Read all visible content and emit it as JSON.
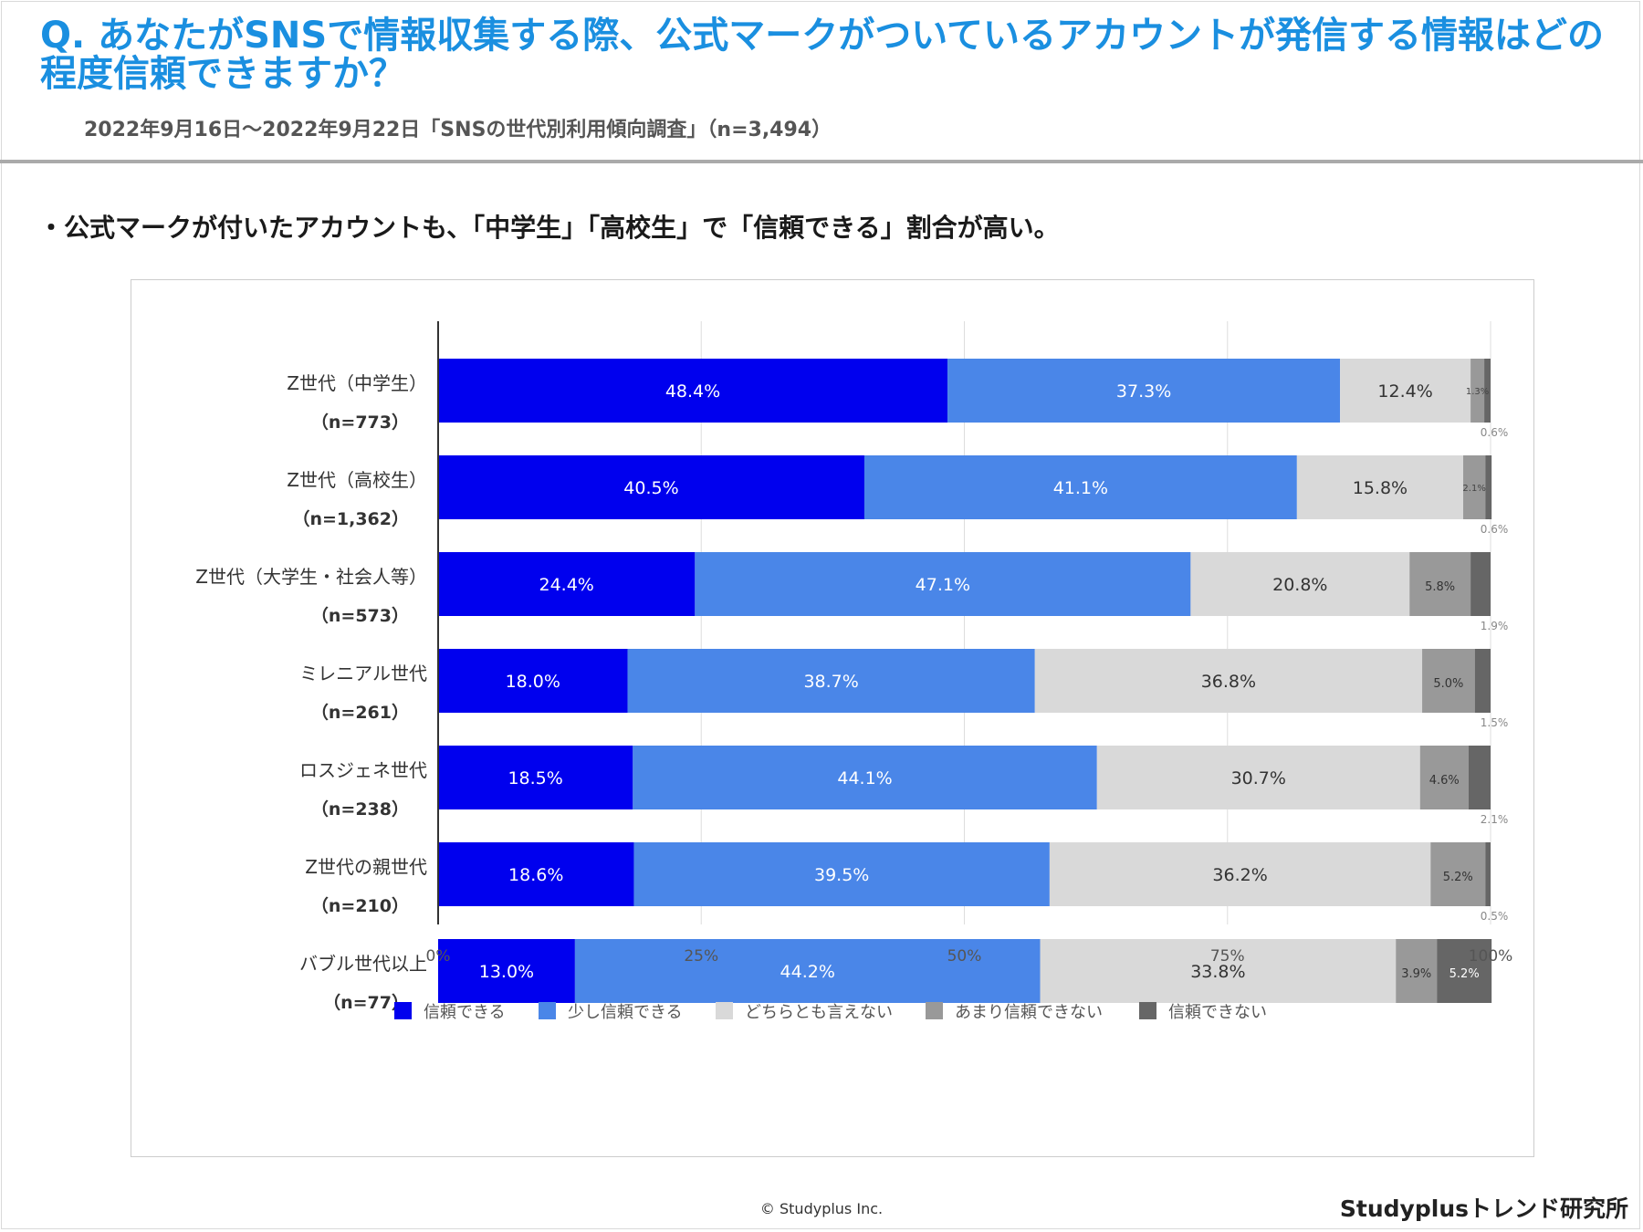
{
  "header": {
    "question": "Q. あなたがSNSで情報収集する際、公式マークがついているアカウントが発信する情報はどの程度信頼できますか？",
    "survey_info": "2022年9月16日～2022年9月22日「SNSの世代別利用傾向調査」（n=3,494）"
  },
  "finding": "・公式マークが付いたアカウントも、「中学生」「高校生」で「信頼できる」割合が高い。",
  "footer": {
    "copyright": "© Studyplus Inc.",
    "brand": "Studyplusトレンド研究所"
  },
  "colors": {
    "trust": "#0000ee",
    "somewhat_trust": "#4a86e8",
    "neutral": "#d9d9d9",
    "not_much": "#999999",
    "no_trust": "#666666",
    "title_blue": "#1a8fe0"
  },
  "chart_data": {
    "type": "bar",
    "orientation": "horizontal",
    "stacked": true,
    "normalized": true,
    "categories": [
      {
        "label": "Z世代（中学生）",
        "n": "（n=773）"
      },
      {
        "label": "Z世代（高校生）",
        "n": "（n=1,362）"
      },
      {
        "label": "Z世代（大学生・社会人等）",
        "n": "（n=573）"
      },
      {
        "label": "ミレニアル世代",
        "n": "（n=261）"
      },
      {
        "label": "ロスジェネ世代",
        "n": "（n=238）"
      },
      {
        "label": "Z世代の親世代",
        "n": "（n=210）"
      },
      {
        "label": "バブル世代以上",
        "n": "（n=77）"
      }
    ],
    "series": [
      {
        "name": "信頼できる",
        "values": [
          48.4,
          40.5,
          24.4,
          18.0,
          18.5,
          18.6,
          13.0
        ]
      },
      {
        "name": "少し信頼できる",
        "values": [
          37.3,
          41.1,
          47.1,
          38.7,
          44.1,
          39.5,
          44.2
        ]
      },
      {
        "name": "どちらとも言えない",
        "values": [
          12.4,
          15.8,
          20.8,
          36.8,
          30.7,
          36.2,
          33.8
        ]
      },
      {
        "name": "あまり信頼できない",
        "values": [
          1.3,
          2.1,
          5.8,
          5.0,
          4.6,
          5.2,
          3.9
        ]
      },
      {
        "name": "信頼できない",
        "values": [
          0.6,
          0.6,
          1.9,
          1.5,
          2.1,
          0.5,
          5.2
        ]
      }
    ],
    "value_suffix": "%",
    "x_ticks": [
      "0%",
      "25%",
      "50%",
      "75%",
      "100%"
    ],
    "xlim": [
      0,
      100
    ],
    "grid": true,
    "legend_position": "bottom"
  }
}
